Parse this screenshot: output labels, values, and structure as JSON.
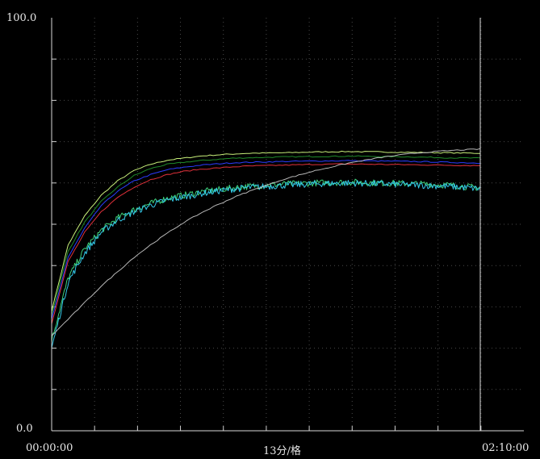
{
  "chart_data": {
    "type": "line",
    "title": "",
    "xlabel": "13分/格",
    "ylabel": "",
    "y_tick_labels": [
      "100.0",
      "0.0"
    ],
    "x_tick_labels": [
      "00:00:00",
      "02:10:00"
    ],
    "ylim": [
      0,
      100
    ],
    "xlim_minutes": [
      0,
      130
    ],
    "x_division_minutes": 13,
    "y_divisions": 10,
    "x_divisions": 10,
    "grid": true,
    "legend": "none",
    "cursor_x_minutes": 130,
    "series": [
      {
        "color": "#c8f07a",
        "x": [
          0,
          5,
          10,
          15,
          20,
          25,
          30,
          35,
          40,
          45,
          50,
          55,
          60,
          70,
          80,
          90,
          100,
          110,
          120,
          130
        ],
        "y": [
          29,
          45,
          52,
          57,
          60.5,
          63,
          64.5,
          65.5,
          66,
          66.5,
          66.8,
          67,
          67.2,
          67.3,
          67.5,
          67.6,
          67.5,
          67.4,
          67.3,
          67.2
        ]
      },
      {
        "color": "#1f8a2a",
        "x": [
          0,
          5,
          10,
          15,
          20,
          25,
          30,
          35,
          40,
          45,
          50,
          55,
          60,
          70,
          80,
          90,
          100,
          110,
          120,
          130
        ],
        "y": [
          28,
          43.5,
          50.5,
          55.5,
          59,
          61.8,
          63.5,
          64.5,
          65,
          65.4,
          65.7,
          66,
          66.1,
          66.3,
          66.4,
          66.5,
          66.4,
          66.3,
          66.1,
          66
        ]
      },
      {
        "color": "#2b3cff",
        "x": [
          0,
          5,
          10,
          15,
          20,
          25,
          30,
          35,
          40,
          45,
          50,
          55,
          60,
          70,
          80,
          90,
          100,
          110,
          120,
          130
        ],
        "y": [
          27,
          42,
          49,
          54.5,
          58,
          60.5,
          62,
          63.2,
          63.8,
          64.3,
          64.6,
          64.9,
          65,
          65.2,
          65.3,
          65.4,
          65.3,
          65.2,
          65,
          64.8
        ]
      },
      {
        "color": "#e0303a",
        "x": [
          0,
          5,
          10,
          15,
          20,
          25,
          30,
          35,
          40,
          45,
          50,
          55,
          60,
          70,
          80,
          90,
          100,
          110,
          120,
          130
        ],
        "y": [
          26,
          41,
          48,
          53,
          56.5,
          59,
          60.8,
          62,
          62.8,
          63.3,
          63.6,
          63.9,
          64.1,
          64.3,
          64.5,
          64.6,
          64.5,
          64.4,
          64.3,
          64.2
        ]
      },
      {
        "color": "#3fd17a",
        "x": [
          0,
          5,
          10,
          15,
          20,
          25,
          30,
          35,
          40,
          45,
          50,
          55,
          60,
          70,
          80,
          90,
          100,
          110,
          120,
          130
        ],
        "y": [
          22,
          37,
          44,
          48.5,
          51.5,
          53.5,
          55,
          56.3,
          57,
          57.8,
          58.3,
          58.8,
          59.2,
          59.7,
          60,
          60.2,
          60,
          59.8,
          59.5,
          58.8
        ]
      },
      {
        "color": "#33c8e8",
        "x": [
          0,
          5,
          10,
          15,
          20,
          25,
          30,
          35,
          40,
          45,
          50,
          55,
          60,
          70,
          80,
          90,
          100,
          110,
          120,
          130
        ],
        "y": [
          20,
          36,
          43,
          48,
          51,
          53,
          54.6,
          55.8,
          56.6,
          57.4,
          58,
          58.5,
          58.9,
          59.4,
          59.8,
          60,
          59.8,
          59.5,
          59.2,
          58.6
        ]
      },
      {
        "color": "#b8b8b8",
        "x": [
          0,
          5,
          10,
          15,
          20,
          25,
          30,
          35,
          40,
          45,
          50,
          55,
          60,
          70,
          80,
          90,
          100,
          110,
          120,
          130
        ],
        "y": [
          23,
          27,
          31,
          35,
          38.5,
          42,
          45,
          47.8,
          50.4,
          52.6,
          54.6,
          56.4,
          58,
          60.8,
          63,
          64.8,
          66.2,
          67.2,
          67.8,
          68.2
        ]
      }
    ]
  }
}
